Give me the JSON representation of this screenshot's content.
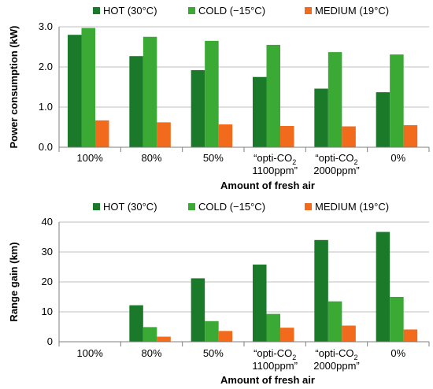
{
  "chart_data": [
    {
      "type": "bar",
      "categories": [
        [
          "100%"
        ],
        [
          "80%"
        ],
        [
          "50%"
        ],
        [
          "“opti-CO",
          "2",
          "1100ppm”"
        ],
        [
          "“opti-CO",
          "2",
          "2000ppm”"
        ],
        [
          "0%"
        ]
      ],
      "series": [
        {
          "name": "HOT (30°C)",
          "color": "#1a7a2a",
          "values": [
            2.8,
            2.27,
            1.92,
            1.75,
            1.46,
            1.37
          ]
        },
        {
          "name": "COLD (−15°C)",
          "color": "#3aaa35",
          "values": [
            2.97,
            2.75,
            2.65,
            2.55,
            2.37,
            2.31
          ]
        },
        {
          "name": "MEDIUM (19°C)",
          "color": "#f26a1b",
          "values": [
            0.67,
            0.62,
            0.57,
            0.53,
            0.52,
            0.55
          ]
        }
      ],
      "xlabel": "Amount of fresh air",
      "ylabel": "Power consumption (kW)",
      "ylim": [
        0,
        3
      ],
      "yticks": [
        "0.0",
        "1.0",
        "2.0",
        "3.0"
      ],
      "legend": "top",
      "grid": true
    },
    {
      "type": "bar",
      "categories": [
        [
          "100%"
        ],
        [
          "80%"
        ],
        [
          "50%"
        ],
        [
          "“opti-CO",
          "2",
          "1100ppm”"
        ],
        [
          "“opti-CO",
          "2",
          "2000ppm”"
        ],
        [
          "0%"
        ]
      ],
      "series": [
        {
          "name": "HOT (30°C)",
          "color": "#1a7a2a",
          "values": [
            0,
            12.2,
            21.2,
            25.8,
            34,
            36.7
          ]
        },
        {
          "name": "COLD (−15°C)",
          "color": "#3aaa35",
          "values": [
            0,
            4.9,
            6.9,
            9.3,
            13.5,
            15
          ]
        },
        {
          "name": "MEDIUM (19°C)",
          "color": "#f26a1b",
          "values": [
            0,
            1.7,
            3.6,
            4.7,
            5.4,
            4.1
          ]
        }
      ],
      "xlabel": "Amount of fresh air",
      "ylabel": "Range gain (km)",
      "ylim": [
        0,
        40
      ],
      "yticks": [
        "0",
        "10",
        "20",
        "30",
        "40"
      ],
      "legend": "top",
      "grid": true
    }
  ]
}
